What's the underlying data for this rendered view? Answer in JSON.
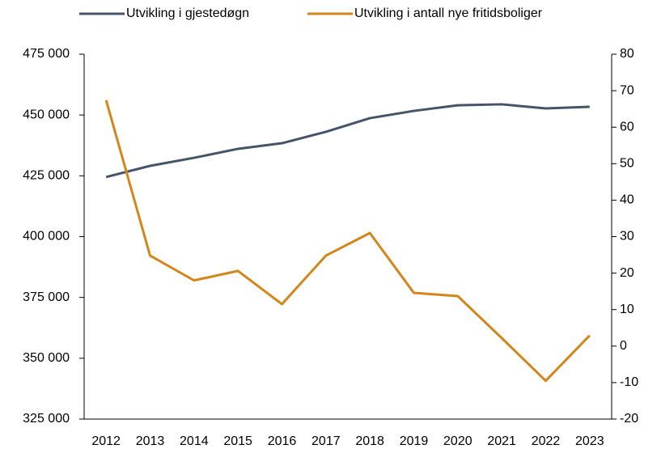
{
  "chart_data": {
    "type": "line",
    "categories": [
      "2012",
      "2013",
      "2014",
      "2015",
      "2016",
      "2017",
      "2018",
      "2019",
      "2020",
      "2021",
      "2022",
      "2023"
    ],
    "series": [
      {
        "name": "Utvikling i gjestedøgn",
        "color": "#44546a",
        "values": [
          424500,
          429100,
          432400,
          436100,
          438400,
          443100,
          448700,
          451700,
          454000,
          454400,
          452700,
          453400
        ]
      },
      {
        "name": "Utvikling i antall nye fritidsboliger",
        "color": "#d4861a",
        "axis": "y2",
        "values": [
          67.4,
          24.8,
          18,
          20.6,
          11.5,
          24.8,
          31,
          14.6,
          13.7,
          2.2,
          -9.5,
          2.9
        ]
      }
    ],
    "ylim": [
      325000,
      475000
    ],
    "yticks": [
      {
        "value": 325000,
        "label": "325 000"
      },
      {
        "value": 350000,
        "label": "350 000"
      },
      {
        "value": 375000,
        "label": "375 000"
      },
      {
        "value": 400000,
        "label": "400 000"
      },
      {
        "value": 425000,
        "label": "425 000"
      },
      {
        "value": 450000,
        "label": "450 000"
      },
      {
        "value": 475000,
        "label": "475 000"
      }
    ],
    "y2lim": [
      -20,
      80
    ],
    "y2ticks": [
      -20,
      -10,
      0,
      10,
      20,
      30,
      40,
      50,
      60,
      70,
      80
    ],
    "grid": false,
    "legend": "top"
  }
}
